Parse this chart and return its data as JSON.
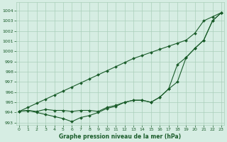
{
  "xlabel": "Graphe pression niveau de la mer (hPa)",
  "ylim": [
    992.8,
    1004.8
  ],
  "xlim": [
    -0.3,
    23.3
  ],
  "yticks": [
    993,
    994,
    995,
    996,
    997,
    998,
    999,
    1000,
    1001,
    1002,
    1003,
    1004
  ],
  "xticks": [
    0,
    1,
    2,
    3,
    4,
    5,
    6,
    7,
    8,
    9,
    10,
    11,
    12,
    13,
    14,
    15,
    16,
    17,
    18,
    19,
    20,
    21,
    22,
    23
  ],
  "bg_color": "#d6ede3",
  "grid_color": "#aacfba",
  "line_color": "#1a5c2a",
  "line1": [
    994.1,
    994.5,
    994.9,
    995.3,
    995.7,
    996.1,
    996.5,
    996.9,
    997.3,
    997.7,
    998.1,
    998.5,
    998.9,
    999.3,
    999.6,
    999.9,
    1000.2,
    1000.5,
    1000.8,
    1001.1,
    1001.8,
    1003.0,
    1003.4,
    1003.8
  ],
  "line2": [
    994.1,
    994.2,
    994.1,
    994.3,
    994.2,
    994.2,
    994.1,
    994.2,
    994.2,
    994.1,
    994.5,
    994.7,
    995.0,
    995.2,
    995.2,
    995.0,
    995.5,
    996.3,
    997.0,
    999.4,
    1000.3,
    1001.1,
    1003.0,
    1003.8
  ],
  "line3": [
    994.1,
    994.2,
    994.0,
    993.8,
    993.6,
    993.4,
    993.1,
    993.5,
    993.7,
    994.0,
    994.4,
    994.6,
    995.0,
    995.2,
    995.2,
    995.0,
    995.5,
    996.3,
    998.7,
    999.4,
    1000.3,
    1001.1,
    1003.0,
    1003.8
  ]
}
